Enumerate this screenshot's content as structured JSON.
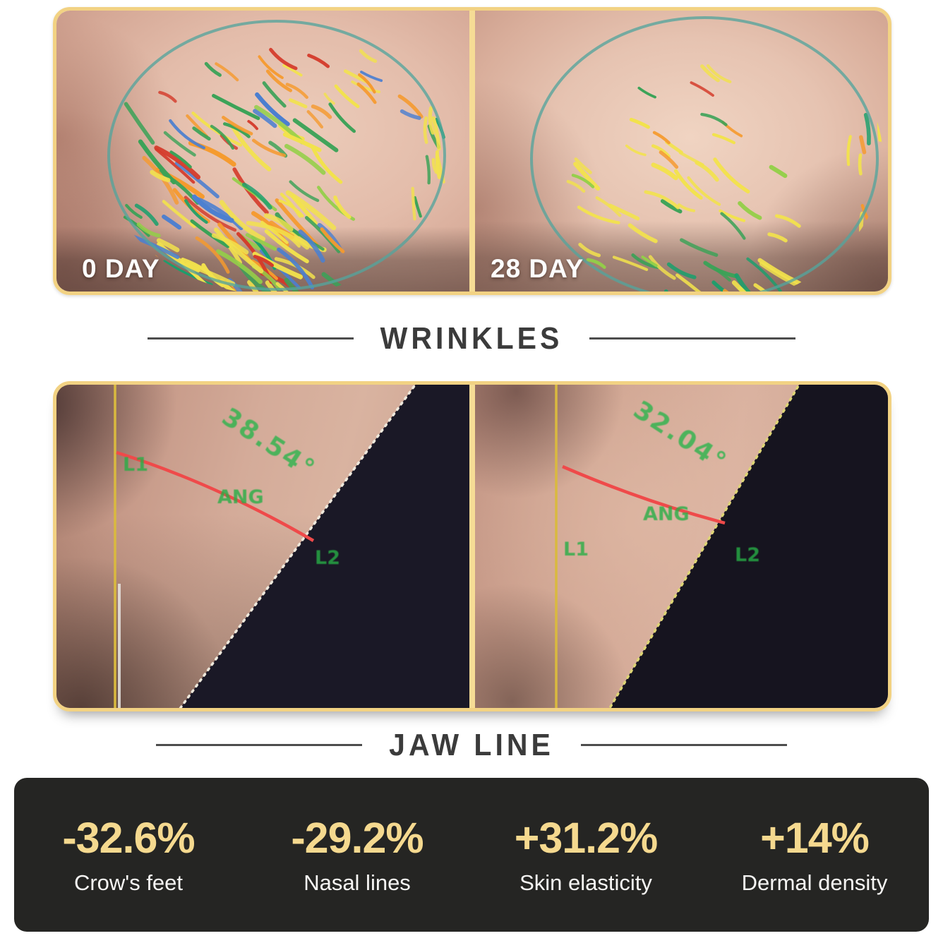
{
  "wrinkles_section": {
    "title": "WRINKLES",
    "before_tag": "0 DAY",
    "after_tag": "28 DAY"
  },
  "jawline_section": {
    "title": "JAW LINE",
    "before_angle": "38.54°",
    "after_angle": "32.04°",
    "line1_label": "L1",
    "line2_label": "L2",
    "angle_label": "ANG"
  },
  "stats": {
    "items": [
      {
        "value": "-32.6%",
        "label": "Crow's feet"
      },
      {
        "value": "-29.2%",
        "label": "Nasal lines"
      },
      {
        "value": "+31.2%",
        "label": "Skin elasticity"
      },
      {
        "value": "+14%",
        "label": "Dermal density"
      }
    ]
  },
  "colors": {
    "gold_border": "#f2d283",
    "gold_divider": "#f6dc95",
    "stat_value_gold": "#f5d98f",
    "stats_panel_dark": "#252523",
    "title_text": "#3b3b3b",
    "annotation_green": "#2fb44e",
    "angle_arc_red": "#ef4a4a",
    "reference_line_yellow": "#d9b93f",
    "jawline_trace_white": "#eee8dc",
    "jawline_trace_yellowish": "#ddd475",
    "shadow_region_dark": "#1a1826",
    "ellipse_teal": "#55a49c",
    "wrinkle_palette": [
      "#f2e24c",
      "#3aa257",
      "#18a06c",
      "#f59a2e",
      "#d43a2a",
      "#4b7fd0",
      "#93cf48"
    ]
  }
}
